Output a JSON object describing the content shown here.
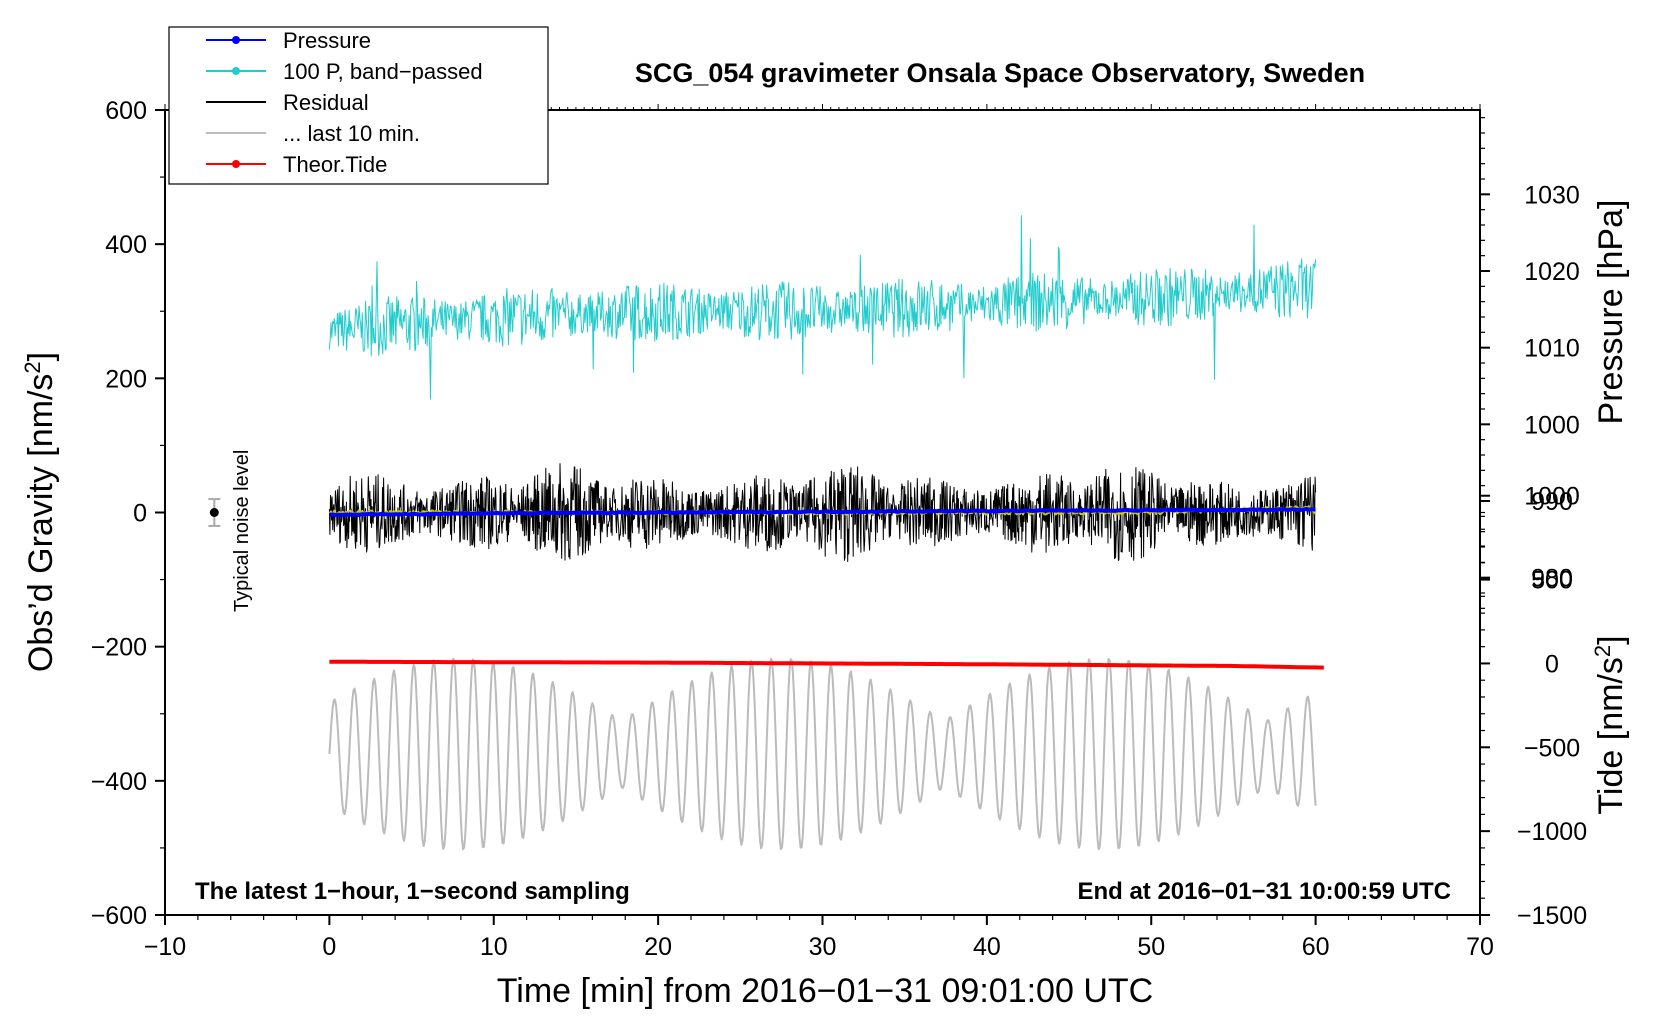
{
  "chart_data": {
    "type": "line",
    "title": "SCG_054 gravimeter Onsala Space Observatory, Sweden",
    "xlabel": "Time [min] from 2016−01−31 09:01:00 UTC",
    "ylabel": "Obs’d Gravity [nm/s",
    "ylabel_sup": "2",
    "ylabel_close": "]",
    "y2label": "Pressure [hPa]",
    "y3label": "Tide [nm/s",
    "y3label_sup": "2",
    "y3label_close": "]",
    "xlim": [
      -10,
      70
    ],
    "ylim": [
      -600,
      600
    ],
    "y2lim": [
      936,
      1041
    ],
    "y3lim": [
      -1500,
      3300
    ],
    "x_ticks": [
      -10,
      0,
      10,
      20,
      30,
      40,
      50,
      60,
      70
    ],
    "x_tick_labels": [
      "−10",
      "0",
      "10",
      "20",
      "30",
      "40",
      "50",
      "60",
      "70"
    ],
    "y_ticks": [
      -600,
      -400,
      -200,
      0,
      200,
      400,
      600
    ],
    "y_tick_labels": [
      "−600",
      "−400",
      "−200",
      "0",
      "200",
      "400",
      "600"
    ],
    "y2_ticks": [
      980,
      990,
      1000,
      1010,
      1020,
      1030
    ],
    "y2_tick_labels": [
      "980",
      "990",
      "1000",
      "1010",
      "1020",
      "1030"
    ],
    "y3_ticks": [
      -1500,
      -1000,
      -500,
      0,
      500,
      1000
    ],
    "y3_tick_labels": [
      "−1500",
      "−1000",
      "−500",
      "0",
      "500",
      "1000"
    ],
    "annotation_left": "The latest 1−hour, 1−second sampling",
    "annotation_right": "End at 2016−01−31 10:00:59 UTC",
    "noise_label": "Typical noise level",
    "noise_marker": {
      "x": -7,
      "y": 0,
      "err": 20
    },
    "legend": [
      {
        "label": "Pressure",
        "color": "#0000ff",
        "marker": true
      },
      {
        "label": "100 P, band−passed",
        "color": "#22cccc",
        "marker": true
      },
      {
        "label": "Residual",
        "color": "#000000",
        "marker": false
      },
      {
        "label": "... last 10 min.",
        "color": "#bbbbbb",
        "marker": false
      },
      {
        "label": "Theor.Tide",
        "color": "#ff0000",
        "marker": true
      }
    ],
    "series": [
      {
        "name": "Pressure",
        "axis": "pressure",
        "color": "#0000ff",
        "x": [
          0,
          10,
          20,
          30,
          40,
          50,
          60
        ],
        "values": [
          988.2,
          988.4,
          988.5,
          988.6,
          988.7,
          988.8,
          988.9
        ]
      },
      {
        "name": "100 P, band−passed",
        "axis": "gravity",
        "color": "#22cccc",
        "x": [
          0,
          10,
          20,
          30,
          40,
          50,
          60
        ],
        "values": [
          270,
          290,
          300,
          300,
          310,
          320,
          335
        ],
        "amplitude": 45
      },
      {
        "name": "Residual",
        "axis": "gravity",
        "color": "#000000",
        "x": [
          0,
          10,
          20,
          30,
          40,
          50,
          60
        ],
        "values": [
          0,
          0,
          0,
          0,
          0,
          0,
          0
        ],
        "amplitude": 75
      },
      {
        "name": "... last 10 min.",
        "axis": "gravity",
        "color": "#bbbbbb",
        "x": [
          0,
          10,
          20,
          30,
          40,
          50,
          60
        ],
        "values": [
          -360,
          -360,
          -360,
          -360,
          -360,
          -360,
          -360
        ],
        "amplitude": 110
      },
      {
        "name": "Theor.Tide",
        "axis": "tide",
        "color": "#ff0000",
        "x": [
          0,
          20,
          40,
          55,
          60.5
        ],
        "values": [
          10,
          5,
          -5,
          -15,
          -25
        ]
      },
      {
        "name": "Smoothed residual",
        "axis": "gravity",
        "color": "#cccc00",
        "x": [
          0,
          10,
          20,
          30,
          40,
          50,
          59.6,
          60
        ],
        "values": [
          0,
          0,
          0,
          0,
          0,
          0,
          8,
          0
        ]
      }
    ]
  }
}
